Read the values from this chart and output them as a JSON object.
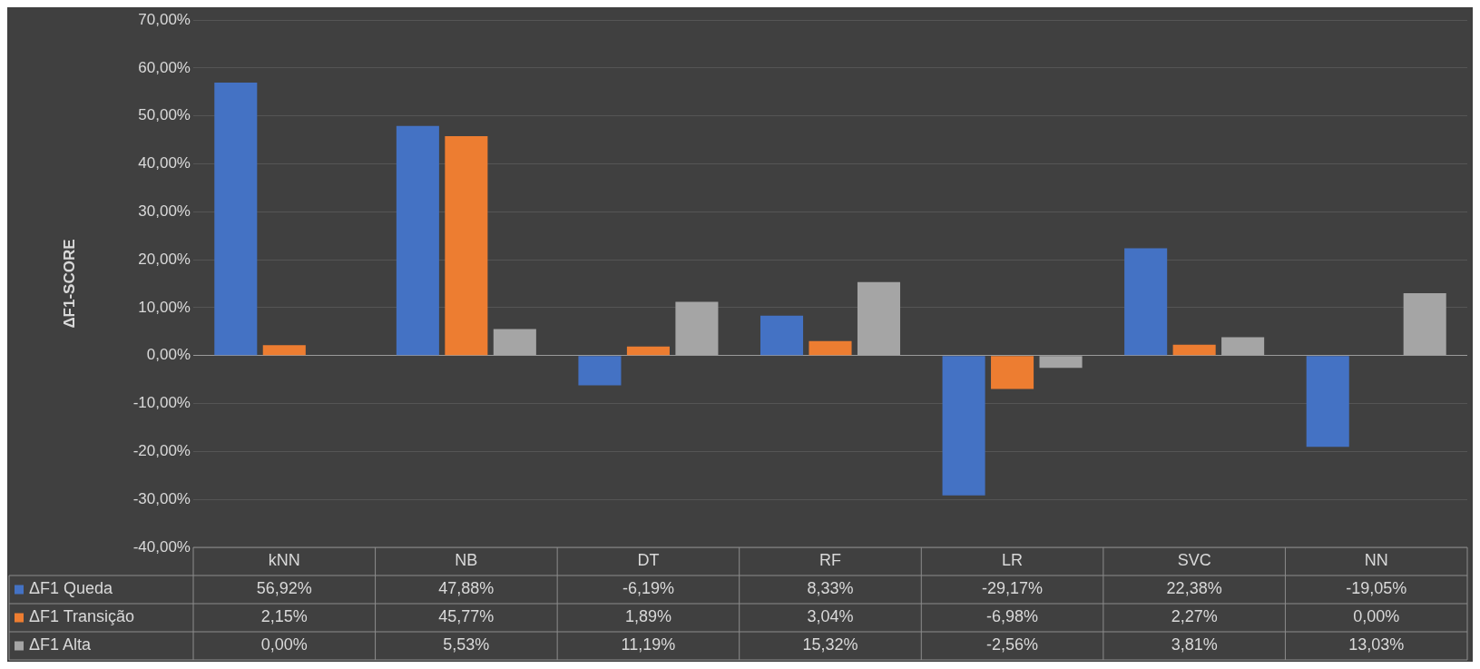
{
  "chart_data": {
    "type": "bar",
    "ylabel": "ΔF1-SCORE",
    "categories": [
      "kNN",
      "NB",
      "DT",
      "RF",
      "LR",
      "SVC",
      "NN"
    ],
    "series": [
      {
        "name": "ΔF1 Queda",
        "color": "#4472c4",
        "values": [
          56.92,
          47.88,
          -6.19,
          8.33,
          -29.17,
          22.38,
          -19.05
        ],
        "value_labels": [
          "56,92%",
          "47,88%",
          "-6,19%",
          "8,33%",
          "-29,17%",
          "22,38%",
          "-19,05%"
        ]
      },
      {
        "name": "ΔF1 Transição",
        "color": "#ed7d31",
        "values": [
          2.15,
          45.77,
          1.89,
          3.04,
          -6.98,
          2.27,
          0
        ],
        "value_labels": [
          "2,15%",
          "45,77%",
          "1,89%",
          "3,04%",
          "-6,98%",
          "2,27%",
          "0,00%"
        ]
      },
      {
        "name": "ΔF1 Alta",
        "color": "#a5a5a5",
        "values": [
          0,
          5.53,
          11.19,
          15.32,
          -2.56,
          3.81,
          13.03
        ],
        "value_labels": [
          "0,00%",
          "5,53%",
          "11,19%",
          "15,32%",
          "-2,56%",
          "3,81%",
          "13,03%"
        ]
      }
    ],
    "ylim": [
      -40,
      70
    ],
    "yticks": [
      {
        "value": -40,
        "label": "-40,00%"
      },
      {
        "value": -30,
        "label": "-30,00%"
      },
      {
        "value": -20,
        "label": "-20,00%"
      },
      {
        "value": -10,
        "label": "-10,00%"
      },
      {
        "value": 0,
        "label": "0,00%"
      },
      {
        "value": 10,
        "label": "10,00%"
      },
      {
        "value": 20,
        "label": "20,00%"
      },
      {
        "value": 30,
        "label": "30,00%"
      },
      {
        "value": 40,
        "label": "40,00%"
      },
      {
        "value": 50,
        "label": "50,00%"
      },
      {
        "value": 60,
        "label": "60,00%"
      },
      {
        "value": 70,
        "label": "70,00%"
      }
    ],
    "grid": "y",
    "legend": "bottom"
  }
}
